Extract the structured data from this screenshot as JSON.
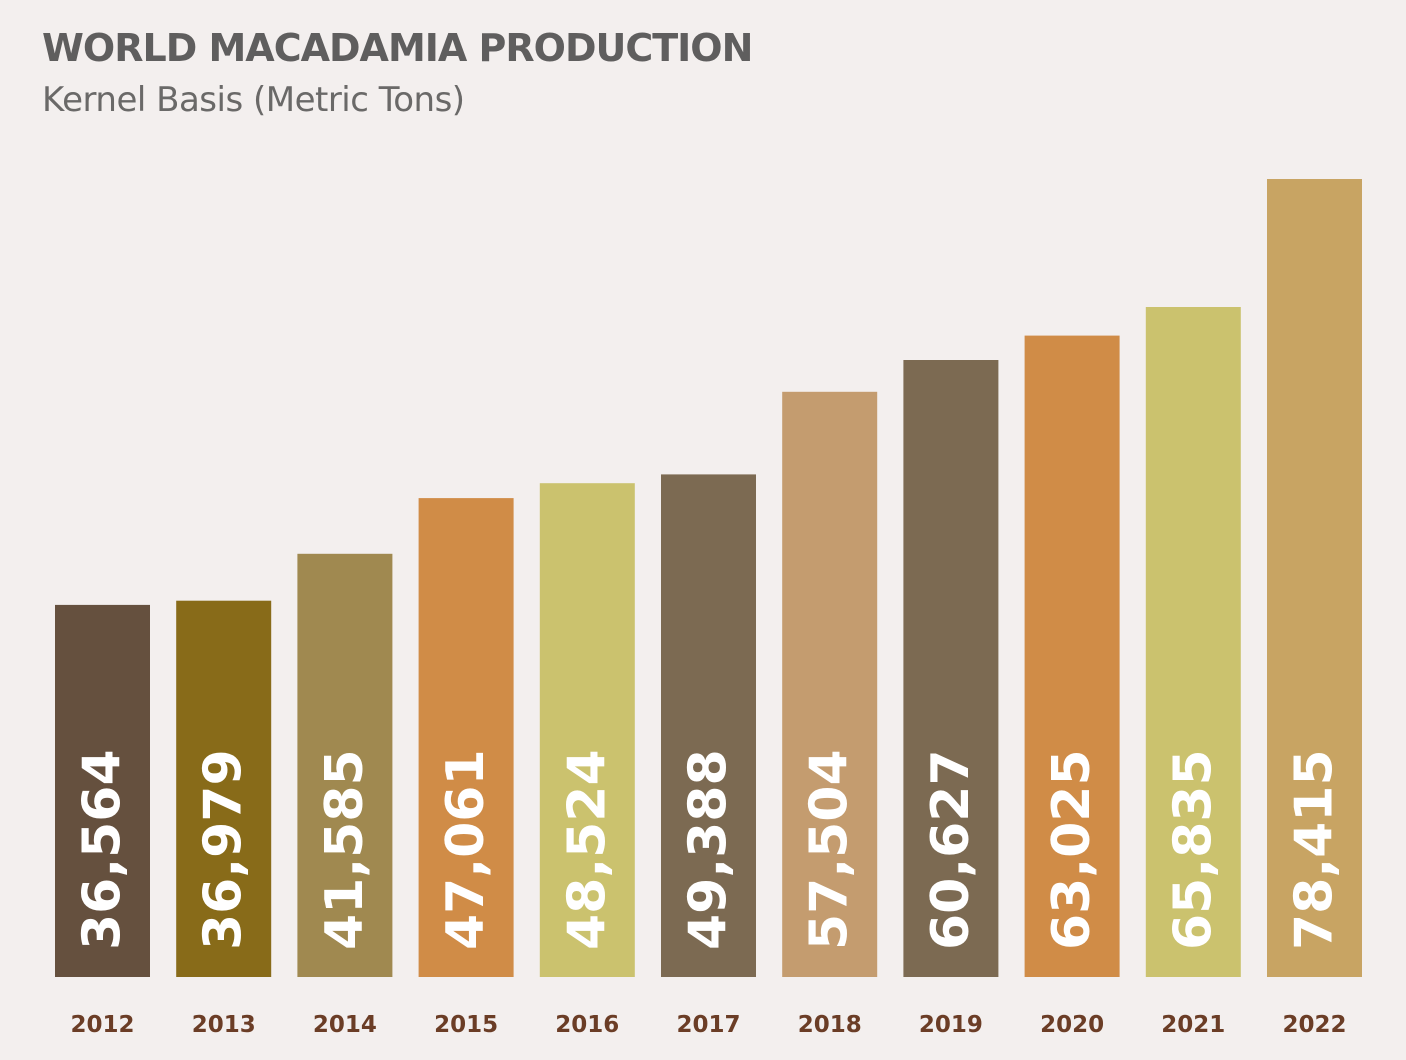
{
  "chart_data": {
    "type": "bar",
    "title": "WORLD MACADAMIA PRODUCTION",
    "subtitle": "Kernel Basis (Metric Tons)",
    "xlabel": "",
    "ylabel": "",
    "grid": false,
    "legend": "none",
    "categories": [
      "2012",
      "2013",
      "2014",
      "2015",
      "2016",
      "2017",
      "2018",
      "2019",
      "2020",
      "2021",
      "2022"
    ],
    "values": [
      36564,
      36979,
      41585,
      47061,
      48524,
      49388,
      57504,
      60627,
      63025,
      65835,
      78415
    ],
    "value_labels": [
      "36,564",
      "36,979",
      "41,585",
      "47,061",
      "48,524",
      "49,388",
      "57,504",
      "60,627",
      "63,025",
      "65,835",
      "78,415"
    ],
    "ylim": [
      0,
      80000
    ],
    "colors": [
      "#65503e",
      "#886b19",
      "#a08950",
      "#d08c47",
      "#cbc26e",
      "#7c6a52",
      "#c49c6f",
      "#7c6a52",
      "#d08c47",
      "#cbc26e",
      "#c8a463"
    ]
  }
}
